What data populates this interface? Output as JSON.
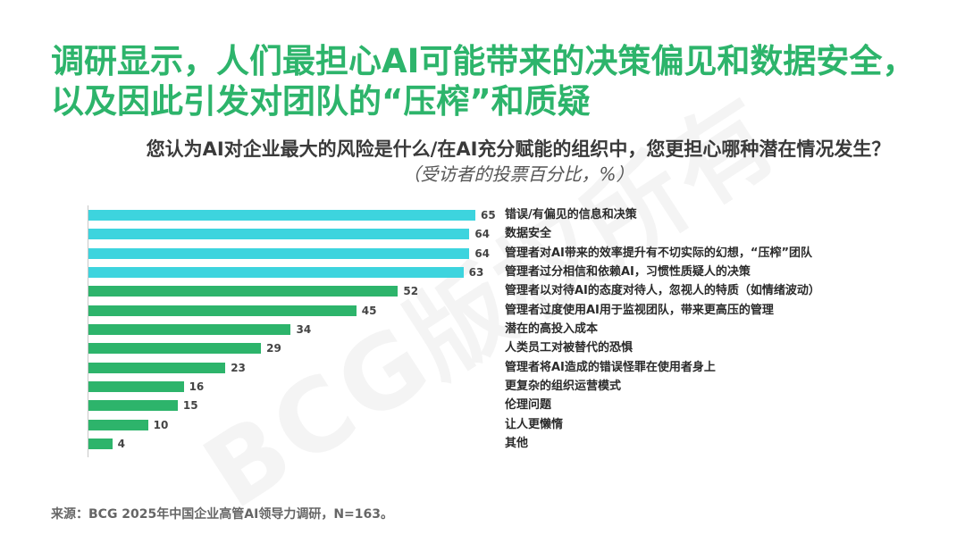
{
  "headline": {
    "line1": "调研显示，人们最担心AI可能带来的决策偏见和数据安全，",
    "line2": "以及因此引发对团队的“压榨”和质疑"
  },
  "watermark": "BCG版权所有",
  "source": "来源：BCG 2025年中国企业高管AI领导力调研，N=163。",
  "colors": {
    "headline": "#2DB46B",
    "highlight_bar": "#3DD4DE",
    "bar": "#2DB46B"
  },
  "chart_data": {
    "type": "bar",
    "orientation": "horizontal",
    "title": "您认为AI对企业最大的风险是什么/在AI充分赋能的组织中，您更担心哪种潜在情况发生？",
    "subtitle": "（受访者的投票百分比，%）",
    "categories": [
      "错误/有偏见的信息和决策",
      "数据安全",
      "管理者对AI带来的效率提升有不切实际的幻想，“压榨”团队",
      "管理者过分相信和依赖AI，习惯性质疑人的决策",
      "管理者以对待AI的态度对待人，忽视人的特质（如情绪波动）",
      "管理者过度使用AI用于监视团队，带来更高压的管理",
      "潜在的高投入成本",
      "人类员工对被替代的恐惧",
      "管理者将AI造成的错误怪罪在使用者身上",
      "更复杂的组织运营模式",
      "伦理问题",
      "让人更懒惰",
      "其他"
    ],
    "values": [
      65,
      64,
      64,
      63,
      52,
      45,
      34,
      29,
      23,
      16,
      15,
      10,
      4
    ],
    "bar_colors": [
      "#3DD4DE",
      "#3DD4DE",
      "#3DD4DE",
      "#3DD4DE",
      "#2DB46B",
      "#2DB46B",
      "#2DB46B",
      "#2DB46B",
      "#2DB46B",
      "#2DB46B",
      "#2DB46B",
      "#2DB46B",
      "#2DB46B"
    ],
    "grid": false,
    "legend": "none"
  }
}
